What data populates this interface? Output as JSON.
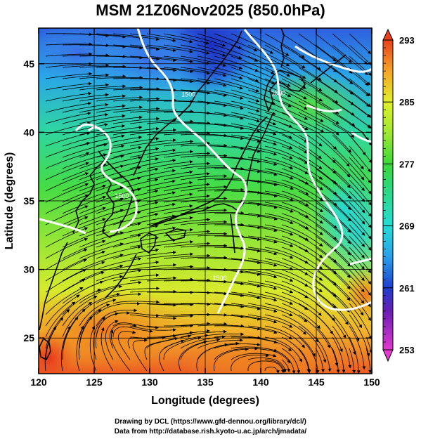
{
  "title": "MSM 21Z06Nov2025 (850.0hPa)",
  "credits": {
    "drawing": "Drawing by DCL (https://www.gfd-dennou.org/library/dcl/)",
    "source": "Data from http://database.rish.kyoto-u.ac.jp/arch/jmadata/"
  },
  "map": {
    "x_axis": {
      "label": "Longitude (degrees)",
      "range": [
        120,
        150
      ],
      "ticks": [
        120,
        125,
        130,
        135,
        140,
        145,
        150
      ]
    },
    "y_axis": {
      "label": "Latitude  (degrees)",
      "range": [
        22.4,
        47.6
      ],
      "ticks": [
        25,
        30,
        35,
        40,
        45
      ]
    },
    "grid": true,
    "layers": [
      "temperature shading",
      "streamlines",
      "coastlines",
      "white contours"
    ],
    "contour_labels": [
      {
        "text": "1500",
        "lon": 133.5,
        "lat": 42.6
      },
      {
        "text": "1500",
        "lon": 141.6,
        "lat": 42.7
      },
      {
        "text": "1500",
        "lon": 127.5,
        "lat": 35.2
      },
      {
        "text": "1500",
        "lon": 136.3,
        "lat": 29.2
      }
    ]
  },
  "colorbar": {
    "label_values": [
      293,
      285,
      277,
      269,
      261,
      253
    ],
    "range": [
      253,
      293
    ],
    "stops": [
      {
        "v": 253,
        "color": "#e23ad0"
      },
      {
        "v": 258,
        "color": "#6a1fb6"
      },
      {
        "v": 261,
        "color": "#1f3fcf"
      },
      {
        "v": 265,
        "color": "#2aa0ea"
      },
      {
        "v": 269,
        "color": "#26dcd6"
      },
      {
        "v": 274,
        "color": "#2ed87a"
      },
      {
        "v": 277,
        "color": "#3cd83a"
      },
      {
        "v": 281,
        "color": "#9ee832"
      },
      {
        "v": 285,
        "color": "#e0ee2c"
      },
      {
        "v": 289,
        "color": "#f5a52a"
      },
      {
        "v": 293,
        "color": "#e8401c"
      }
    ]
  }
}
